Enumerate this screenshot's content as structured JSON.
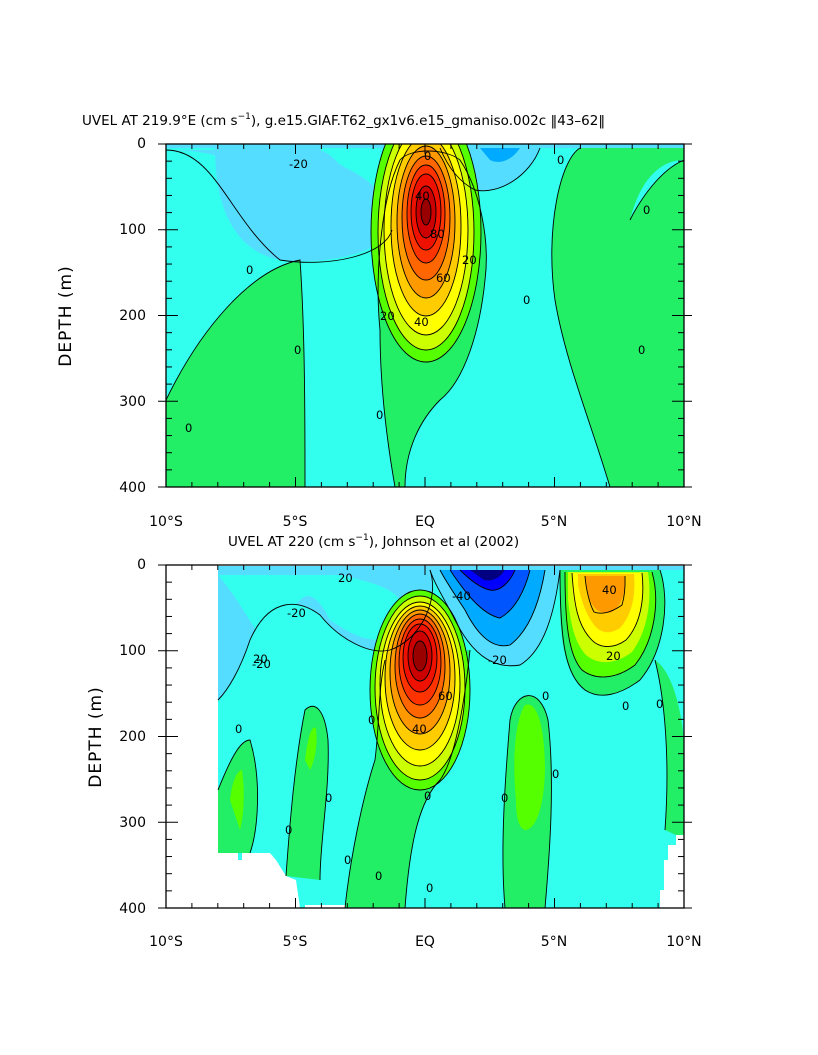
{
  "chart_data": [
    {
      "type": "heatmap",
      "subtype": "filled-contour",
      "title_prefix": "UVEL AT 219.9°E (cm s",
      "title_sup": "−1",
      "title_suffix": "), g.e15.GIAF.T62_gx1v6.e15_gmaniso.002c ‖43–62‖",
      "xlabel": "",
      "ylabel": "DEPTH (m)",
      "xlim": [
        -10,
        10
      ],
      "ylim": [
        400,
        0
      ],
      "x_tick_labels": [
        "10°S",
        "5°S",
        "EQ",
        "5°N",
        "10°N"
      ],
      "y_tick_labels": [
        "0",
        "100",
        "200",
        "300",
        "400"
      ],
      "contour_interval": 10,
      "contour_labels": [
        "-20",
        "0",
        "0",
        "0",
        "0",
        "0",
        "0",
        "0",
        "0",
        "0",
        "20",
        "20",
        "40",
        "40",
        "60",
        "80"
      ],
      "jet_core": {
        "lat": 0,
        "depth": 115,
        "max_speed": 100
      },
      "westward_minimum": {
        "lat": -1.5,
        "depth": 10,
        "value": -30
      }
    },
    {
      "type": "heatmap",
      "subtype": "filled-contour",
      "title_prefix": "UVEL AT 220 (cm s",
      "title_sup": "−1",
      "title_suffix": "), Johnson et al (2002)",
      "xlabel": "",
      "ylabel": "DEPTH (m)",
      "xlim": [
        -10,
        10
      ],
      "ylim": [
        400,
        0
      ],
      "x_tick_labels": [
        "10°S",
        "5°S",
        "EQ",
        "5°N",
        "10°N"
      ],
      "y_tick_labels": [
        "0",
        "100",
        "200",
        "300",
        "400"
      ],
      "contour_interval": 10,
      "contour_labels": [
        "20",
        "-20",
        "-20",
        "-20",
        "-40",
        "0",
        "0",
        "0",
        "0",
        "0",
        "0",
        "0",
        "0",
        "0",
        "0",
        "0",
        "0",
        "0",
        "20",
        "20",
        "40",
        "40",
        "60"
      ],
      "jet_core": {
        "lat": 0,
        "depth": 110,
        "max_speed": 100
      },
      "westward_minimum": {
        "lat": 2,
        "depth": 10,
        "value": -60
      },
      "nequ_countercurrent": {
        "lat": 7,
        "depth": 40,
        "max_speed": 50
      }
    }
  ],
  "colors": {
    "palette": [
      "#000080",
      "#0000ff",
      "#0055ff",
      "#00aaff",
      "#55ddff",
      "#33ffee",
      "#22ee66",
      "#55ff00",
      "#ccff00",
      "#ffff00",
      "#ffcc00",
      "#ff9900",
      "#ff6600",
      "#ff3300",
      "#ee1100",
      "#cc0000",
      "#990000"
    ]
  }
}
